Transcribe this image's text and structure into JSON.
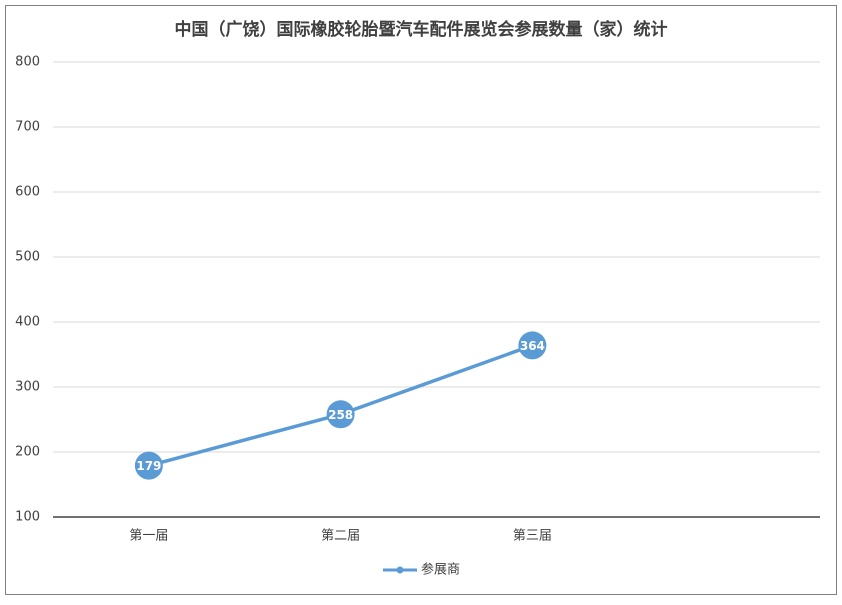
{
  "chart_data": {
    "type": "line",
    "title": "中国（广饶）国际橡胶轮胎暨汽车配件展览会参展数量（家）统计",
    "categories": [
      "第一届",
      "第二届",
      "第三届",
      null
    ],
    "series": [
      {
        "name": "参展商",
        "color": "#5b9bd5",
        "values": [
          179,
          258,
          364,
          null
        ]
      }
    ],
    "ylim": [
      100,
      800
    ],
    "yticks": [
      100,
      200,
      300,
      400,
      500,
      600,
      700,
      800
    ],
    "grid": true,
    "legend": "bottom"
  }
}
